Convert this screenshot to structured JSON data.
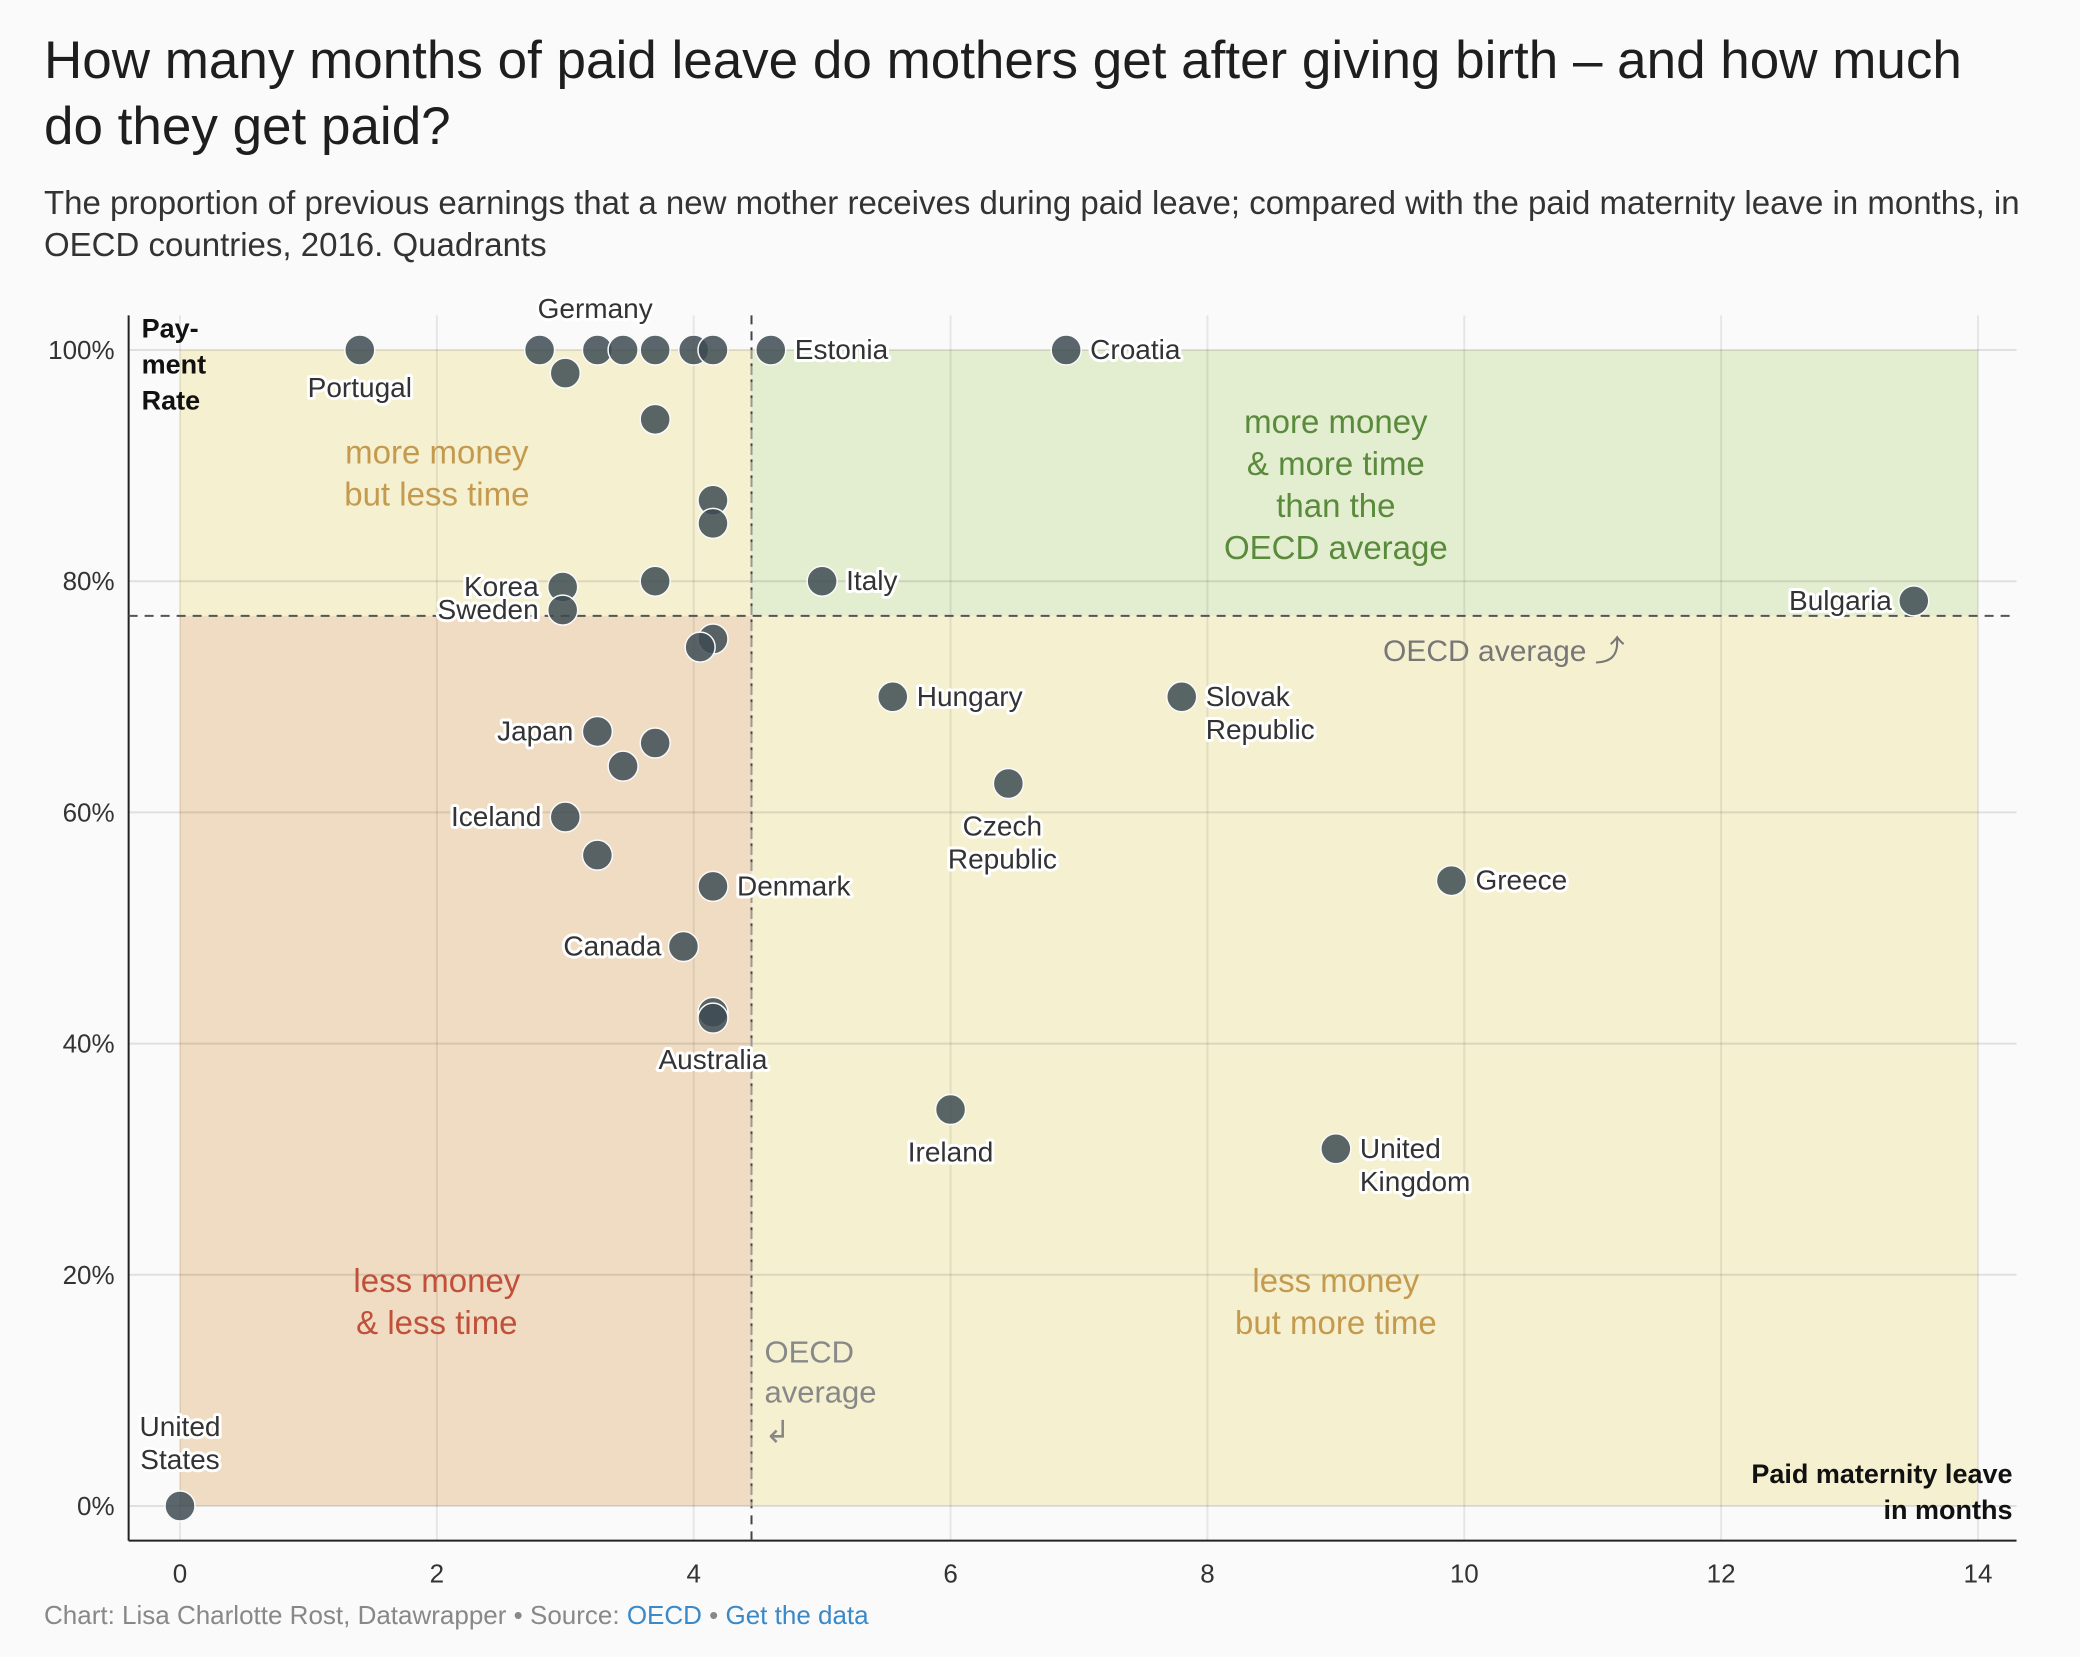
{
  "title": "How many months of paid leave do mothers get after giving birth – and how much do they get paid?",
  "subtitle": "The proportion of previous earnings that a new mother receives during paid leave; compared with the paid maternity leave in months, in OECD countries, 2016. Quadrants",
  "footer": {
    "credit": "Chart: Lisa Charlotte Rost, Datawrapper • Source: ",
    "source_link": "OECD",
    "separator": " • ",
    "data_link": "Get the data"
  },
  "chart_data": {
    "type": "scatter",
    "xlabel": [
      "Paid maternity leave",
      "in months"
    ],
    "ylabel": [
      "Pay-",
      "ment",
      "Rate"
    ],
    "xlim": [
      -0.4,
      14.3
    ],
    "ylim": [
      -3,
      103
    ],
    "x_ticks": [
      0,
      2,
      4,
      6,
      8,
      10,
      12,
      14
    ],
    "y_ticks": [
      0,
      20,
      40,
      60,
      80,
      100
    ],
    "y_tick_labels": [
      "0%",
      "20%",
      "40%",
      "60%",
      "80%",
      "100%"
    ],
    "grid": true,
    "oecd_average": {
      "x": 4.45,
      "y": 77
    },
    "average_labels": {
      "horizontal": "OECD average ⤴",
      "vertical": [
        "OECD",
        "average",
        "↲"
      ]
    },
    "quadrants": [
      {
        "key": "top_left",
        "label": [
          "more money",
          "but less time"
        ],
        "fill": "#f5f0d0",
        "text_color": "#c49a4e"
      },
      {
        "key": "top_right",
        "label": [
          "more money",
          "& more time",
          "than the",
          "OECD average"
        ],
        "fill": "#e3edcf",
        "text_color": "#5a8a3c"
      },
      {
        "key": "bottom_left",
        "label": [
          "less money",
          "& less time"
        ],
        "fill": "#efdcc3",
        "text_color": "#c0503a"
      },
      {
        "key": "bottom_right",
        "label": [
          "less money",
          "but more time"
        ],
        "fill": "#f5f0d0",
        "text_color": "#c49a4e"
      }
    ],
    "point_color": "#3d4b52",
    "points": [
      {
        "x": 0.0,
        "y": 0,
        "label": [
          "United",
          "States"
        ]
      },
      {
        "x": 1.4,
        "y": 100,
        "label": [
          "Portugal"
        ]
      },
      {
        "x": 2.8,
        "y": 100,
        "label": []
      },
      {
        "x": 3.25,
        "y": 100,
        "label": []
      },
      {
        "x": 3.45,
        "y": 100,
        "label": []
      },
      {
        "x": 3.7,
        "y": 100,
        "label": [
          "Germany"
        ]
      },
      {
        "x": 4.0,
        "y": 100,
        "label": []
      },
      {
        "x": 4.15,
        "y": 100,
        "label": []
      },
      {
        "x": 4.6,
        "y": 100,
        "label": [
          "Estonia"
        ]
      },
      {
        "x": 6.9,
        "y": 100,
        "label": [
          "Croatia"
        ]
      },
      {
        "x": 3.0,
        "y": 98,
        "label": []
      },
      {
        "x": 3.7,
        "y": 94,
        "label": []
      },
      {
        "x": 4.15,
        "y": 87,
        "label": []
      },
      {
        "x": 4.15,
        "y": 85,
        "label": []
      },
      {
        "x": 2.98,
        "y": 79.5,
        "label": [
          "Korea"
        ]
      },
      {
        "x": 3.7,
        "y": 80,
        "label": []
      },
      {
        "x": 5.0,
        "y": 80,
        "label": [
          "Italy"
        ]
      },
      {
        "x": 2.98,
        "y": 77.5,
        "label": [
          "Sweden"
        ]
      },
      {
        "x": 13.5,
        "y": 78.3,
        "label": [
          "Bulgaria"
        ]
      },
      {
        "x": 4.15,
        "y": 75,
        "label": []
      },
      {
        "x": 4.05,
        "y": 74.3,
        "label": []
      },
      {
        "x": 5.55,
        "y": 70,
        "label": [
          "Hungary"
        ]
      },
      {
        "x": 7.8,
        "y": 70,
        "label": [
          "Slovak",
          "Republic"
        ]
      },
      {
        "x": 3.25,
        "y": 67,
        "label": [
          "Japan"
        ]
      },
      {
        "x": 3.7,
        "y": 66,
        "label": []
      },
      {
        "x": 3.45,
        "y": 64,
        "label": []
      },
      {
        "x": 6.45,
        "y": 62.5,
        "label": [
          "Czech",
          "Republic"
        ]
      },
      {
        "x": 3.0,
        "y": 59.6,
        "label": [
          "Iceland"
        ]
      },
      {
        "x": 3.25,
        "y": 56.3,
        "label": []
      },
      {
        "x": 4.15,
        "y": 53.6,
        "label": [
          "Denmark"
        ]
      },
      {
        "x": 9.9,
        "y": 54.1,
        "label": [
          "Greece"
        ]
      },
      {
        "x": 3.92,
        "y": 48.4,
        "label": [
          "Canada"
        ]
      },
      {
        "x": 4.15,
        "y": 42.7,
        "label": []
      },
      {
        "x": 4.15,
        "y": 42.2,
        "label": [
          "Australia"
        ]
      },
      {
        "x": 6.0,
        "y": 34.3,
        "label": [
          "Ireland"
        ]
      },
      {
        "x": 9.0,
        "y": 30.9,
        "label": [
          "United",
          "Kingdom"
        ]
      }
    ]
  }
}
